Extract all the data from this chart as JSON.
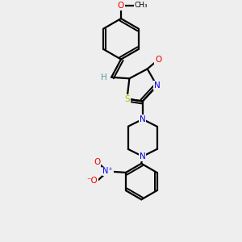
{
  "bg_color": "#eeeeee",
  "bond_color": "#000000",
  "atom_colors": {
    "N": "#0000ee",
    "O": "#ee0000",
    "S": "#bbbb00",
    "H": "#559999",
    "C": "#000000"
  },
  "line_width": 1.6,
  "figsize": [
    3.0,
    3.0
  ],
  "dpi": 100,
  "xlim": [
    0.2,
    0.8
  ],
  "ylim": [
    0.02,
    1.02
  ]
}
